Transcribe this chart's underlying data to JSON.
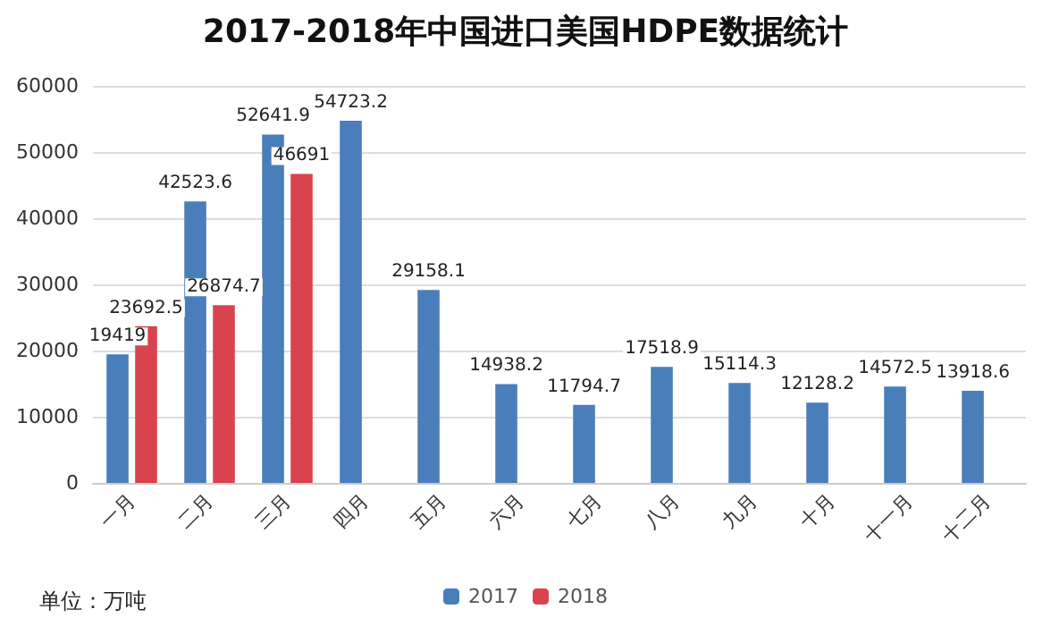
{
  "chart_data": {
    "type": "bar",
    "title": "2017-2018年中国进口美国HDPE数据统计",
    "categories": [
      "一月",
      "二月",
      "三月",
      "四月",
      "五月",
      "六月",
      "七月",
      "八月",
      "九月",
      "十月",
      "十一月",
      "十二月"
    ],
    "series": [
      {
        "name": "2017",
        "color": "#4a7ebb",
        "values": [
          19419,
          42523.6,
          52641.9,
          54723.2,
          29158.1,
          14938.2,
          11794.7,
          17518.9,
          15114.3,
          12128.2,
          14572.5,
          13918.6
        ]
      },
      {
        "name": "2018",
        "color": "#d9434e",
        "values": [
          23692.5,
          26874.7,
          46691,
          null,
          null,
          null,
          null,
          null,
          null,
          null,
          null,
          null
        ]
      }
    ],
    "ylim": [
      0,
      60000
    ],
    "yticks": [
      0,
      10000,
      20000,
      30000,
      40000,
      50000,
      60000
    ],
    "grid": "y",
    "legend": "bottom",
    "data_labels": true,
    "annotations": [
      "单位：万吨"
    ]
  }
}
